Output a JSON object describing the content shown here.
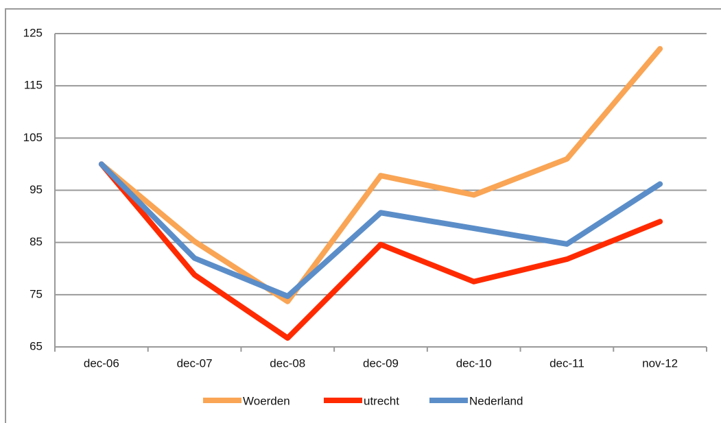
{
  "chart_data": {
    "type": "line",
    "categories": [
      "dec-06",
      "dec-07",
      "dec-08",
      "dec-09",
      "dec-10",
      "dec-11",
      "nov-12"
    ],
    "series": [
      {
        "name": "Woerden",
        "color": "#f9a555",
        "values": [
          100,
          85.2,
          73.7,
          97.8,
          94.1,
          101,
          122.1
        ]
      },
      {
        "name": "utrecht",
        "color": "#ff2a00",
        "values": [
          100,
          78.8,
          66.7,
          84.6,
          77.5,
          81.8,
          89
        ]
      },
      {
        "name": "Nederland",
        "color": "#5b8ec9",
        "values": [
          100,
          82,
          74.7,
          90.7,
          87.7,
          84.7,
          96.2
        ]
      }
    ],
    "ylim": [
      65,
      125
    ],
    "yticks": [
      65,
      75,
      85,
      95,
      105,
      115,
      125
    ],
    "grid": true,
    "legend": "bottom"
  }
}
